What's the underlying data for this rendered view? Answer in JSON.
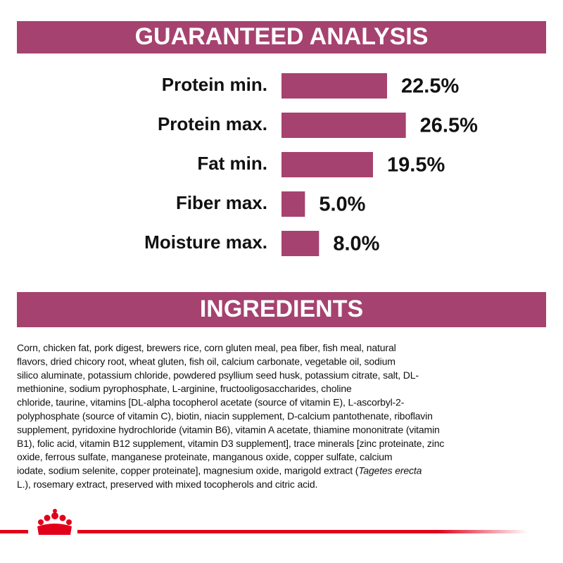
{
  "chart_data": {
    "type": "hbar",
    "title": "GUARANTEED ANALYSIS",
    "categories": [
      "Protein min.",
      "Protein max.",
      "Fat min.",
      "Fiber max.",
      "Moisture max."
    ],
    "values": [
      22.5,
      26.5,
      19.5,
      5.0,
      8.0
    ],
    "value_labels": [
      "22.5%",
      "26.5%",
      "19.5%",
      "5.0%",
      "8.0%"
    ],
    "color": "#a6426f"
  },
  "ingredients": {
    "title": "INGREDIENTS",
    "lines": [
      "Corn, chicken fat, pork digest, brewers rice, corn gluten meal, pea fiber, fish meal, natural",
      "flavors, dried chicory root, wheat gluten, fish oil, calcium carbonate, vegetable oil, sodium",
      "silico aluminate, potassium chloride, powdered psyllium seed husk, potassium citrate, salt, DL-",
      "methionine, sodium pyrophosphate, L-arginine, fructooligosaccharides, choline",
      "chloride, taurine, vitamins [DL-alpha tocopherol acetate (source of vitamin E), L-ascorbyl-2-",
      "polyphosphate (source of vitamin C), biotin, niacin supplement, D-calcium pantothenate, riboflavin",
      "supplement, pyridoxine hydrochloride (vitamin B6), vitamin A acetate, thiamine mononitrate (vitamin",
      "B1), folic acid, vitamin B12 supplement, vitamin D3 supplement], trace minerals [zinc proteinate, zinc",
      "oxide, ferrous sulfate, manganese proteinate, manganous oxide, copper sulfate, calcium",
      "iodate, sodium selenite, copper proteinate], magnesium oxide, marigold extract (",
      "L.), rosemary extract, preserved with mixed tocopherols and citric acid."
    ],
    "italic_text": "Tagetes erecta"
  }
}
